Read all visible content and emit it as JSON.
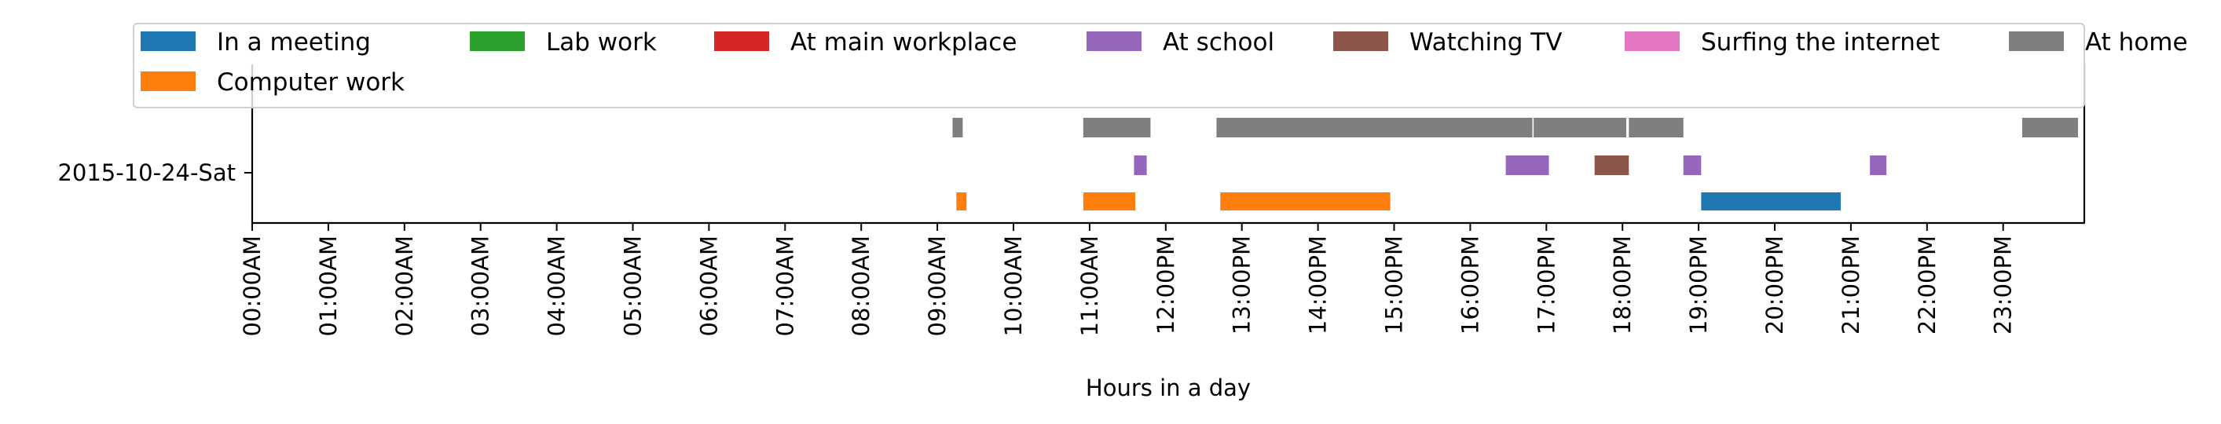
{
  "chart_data": {
    "type": "bar",
    "orientation": "horizontal-timeline",
    "title": "",
    "xlabel": "Hours in a day",
    "ylabel": "",
    "xlim_hours": [
      0,
      24
    ],
    "grid": false,
    "legend_placement": "top",
    "y_categories": [
      "2015-10-24-Sat"
    ],
    "x_tick_labels": [
      "00:00AM",
      "01:00AM",
      "02:00AM",
      "03:00AM",
      "04:00AM",
      "05:00AM",
      "06:00AM",
      "07:00AM",
      "08:00AM",
      "09:00AM",
      "10:00AM",
      "11:00AM",
      "12:00PM",
      "13:00PM",
      "14:00PM",
      "15:00PM",
      "16:00PM",
      "17:00PM",
      "18:00PM",
      "19:00PM",
      "20:00PM",
      "21:00PM",
      "22:00PM",
      "23:00PM"
    ],
    "legend": [
      {
        "label": "In a meeting",
        "color": "#1f77b4"
      },
      {
        "label": "Lab work",
        "color": "#2ca02c"
      },
      {
        "label": "At main workplace",
        "color": "#d62728"
      },
      {
        "label": "At school",
        "color": "#9467bd"
      },
      {
        "label": "Watching TV",
        "color": "#8c564b"
      },
      {
        "label": "Surfing the internet",
        "color": "#e377c2"
      },
      {
        "label": "At home",
        "color": "#7f7f7f"
      },
      {
        "label": "Computer work",
        "color": "#ff7f0e"
      }
    ],
    "series": [
      {
        "name": "At home",
        "color": "#7f7f7f",
        "lane": "top",
        "intervals": [
          [
            "09:12",
            "09:20"
          ],
          [
            "10:55",
            "11:48"
          ],
          [
            "12:40",
            "16:49"
          ],
          [
            "16:50",
            "18:03"
          ],
          [
            "18:05",
            "18:48"
          ],
          [
            "23:15",
            "23:59"
          ]
        ]
      },
      {
        "name": "At school",
        "color": "#9467bd",
        "lane": "middle",
        "intervals": [
          [
            "11:35",
            "11:45"
          ],
          [
            "16:28",
            "17:02"
          ],
          [
            "18:48",
            "19:02"
          ],
          [
            "21:15",
            "21:28"
          ]
        ]
      },
      {
        "name": "Watching TV",
        "color": "#8c564b",
        "lane": "middle",
        "intervals": [
          [
            "17:38",
            "18:05"
          ]
        ]
      },
      {
        "name": "Computer work",
        "color": "#ff7f0e",
        "lane": "bottom",
        "intervals": [
          [
            "09:15",
            "09:23"
          ],
          [
            "10:55",
            "11:36"
          ],
          [
            "12:43",
            "14:57"
          ]
        ]
      },
      {
        "name": "In a meeting",
        "color": "#1f77b4",
        "lane": "bottom",
        "intervals": [
          [
            "19:02",
            "20:52"
          ]
        ]
      }
    ]
  }
}
